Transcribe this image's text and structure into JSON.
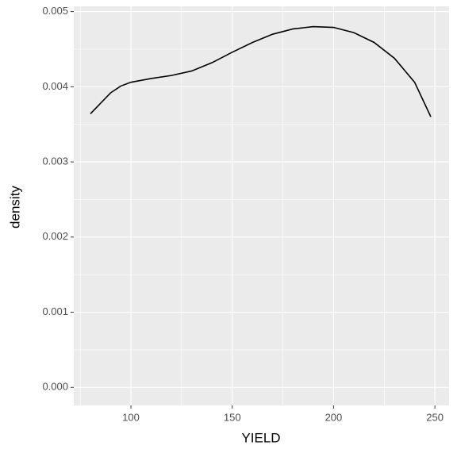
{
  "chart_data": {
    "type": "line",
    "xlabel": "YIELD",
    "ylabel": "density",
    "x": [
      80,
      85,
      90,
      95,
      100,
      110,
      120,
      130,
      140,
      150,
      160,
      170,
      180,
      190,
      200,
      210,
      220,
      230,
      240,
      248
    ],
    "series": [
      {
        "name": "density",
        "color": "#000000",
        "values": [
          0.00364,
          0.00378,
          0.00392,
          0.00401,
          0.00406,
          0.00411,
          0.00415,
          0.00421,
          0.00432,
          0.00446,
          0.00459,
          0.0047,
          0.00477,
          0.0048,
          0.00479,
          0.00472,
          0.00459,
          0.00438,
          0.00406,
          0.0036
        ]
      }
    ],
    "xlim": [
      71.8,
      257
    ],
    "xticks": [
      100,
      150,
      200,
      250
    ],
    "ylim": [
      -0.00024,
      0.00507
    ],
    "yticks": [
      {
        "value": 0,
        "label": "0.000"
      },
      {
        "value": 0.001,
        "label": "0.001"
      },
      {
        "value": 0.002,
        "label": "0.002"
      },
      {
        "value": 0.003,
        "label": "0.003"
      },
      {
        "value": 0.004,
        "label": "0.004"
      },
      {
        "value": 0.005,
        "label": "0.005"
      }
    ],
    "grid": true,
    "panel_color": "#ebebeb"
  }
}
